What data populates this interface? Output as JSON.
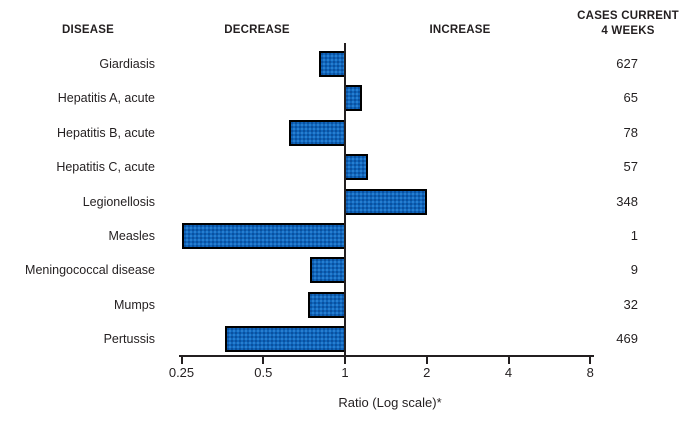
{
  "header": {
    "disease": "DISEASE",
    "decrease": "DECREASE",
    "increase": "INCREASE",
    "cases_line1": "CASES CURRENT",
    "cases_line2": "4 WEEKS"
  },
  "chart_data": {
    "type": "bar",
    "orientation": "horizontal",
    "scale": "log2",
    "title": "",
    "xlabel": "Ratio (Log scale)*",
    "baseline": 1,
    "xlim": [
      0.25,
      8
    ],
    "axis_ticks": [
      0.25,
      0.5,
      1,
      2,
      4,
      8
    ],
    "axis_tick_labels": [
      "0.25",
      "0.5",
      "1",
      "2",
      "4",
      "8"
    ],
    "grid": false,
    "legend": "none",
    "rows": [
      {
        "disease": "Giardiasis",
        "ratio": 0.8,
        "cases": "627"
      },
      {
        "disease": "Hepatitis A, acute",
        "ratio": 1.15,
        "cases": "65"
      },
      {
        "disease": "Hepatitis B, acute",
        "ratio": 0.62,
        "cases": "78"
      },
      {
        "disease": "Hepatitis C, acute",
        "ratio": 1.21,
        "cases": "57"
      },
      {
        "disease": "Legionellosis",
        "ratio": 2.0,
        "cases": "348"
      },
      {
        "disease": "Measles",
        "ratio": 0.25,
        "cases": "1"
      },
      {
        "disease": "Meningococcal disease",
        "ratio": 0.74,
        "cases": "9"
      },
      {
        "disease": "Mumps",
        "ratio": 0.73,
        "cases": "32"
      },
      {
        "disease": "Pertussis",
        "ratio": 0.36,
        "cases": "469"
      }
    ]
  },
  "colors": {
    "bar_fill": "#1167bd",
    "bar_dot": "#0a4f9e",
    "bar_border": "#000000",
    "text": "#231f20",
    "axis": "#231f20",
    "background": "#ffffff"
  }
}
